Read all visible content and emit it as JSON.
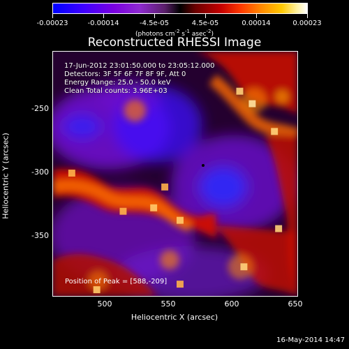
{
  "colorbar": {
    "tick_labels": [
      "-0.00023",
      "-0.00014",
      "-4.5e-05",
      "4.5e-05",
      "0.00014",
      "0.00023"
    ],
    "units": "(photons cm",
    "units_suffix": "-2",
    "units_mid": " s",
    "units_suffix2": "-1",
    "units_mid2": " asec",
    "units_suffix3": "-2",
    "units_end": ")",
    "colors": {
      "min": "#0000ff",
      "mid_neg": "#7a00e0",
      "zero": "#000000",
      "mid_pos": "#ff3a00",
      "max": "#ffffff"
    }
  },
  "title": "Reconstructed RHESSI Image",
  "info": {
    "line1": "17-Jun-2012 23:01:50.000 to 23:05:12.000",
    "line2": "Detectors: 3F 5F 6F 7F 8F 9F, Att 0",
    "line3": "Energy Range: 25.0 - 50.0 keV",
    "line4": "Clean     Total counts: 3.96E+03"
  },
  "peak": {
    "label": "Position of Peak = [588,-209]"
  },
  "axes": {
    "xlabel": "Heliocentric X (arcsec)",
    "ylabel": "Heliocentric Y (arcsec)",
    "xticks": [
      "500",
      "550",
      "600",
      "650"
    ],
    "yticks": [
      "-250",
      "-300",
      "-350"
    ]
  },
  "timestamp": "16-May-2014 14:47"
}
